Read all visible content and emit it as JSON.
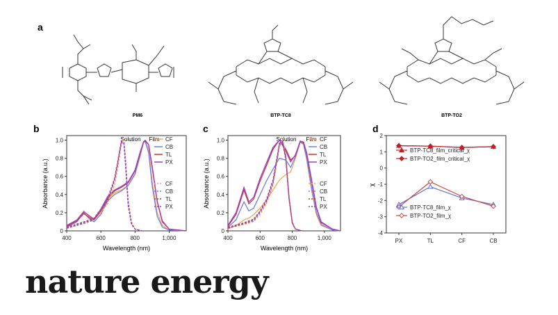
{
  "panel_labels": {
    "a": "a",
    "b": "b",
    "c": "c",
    "d": "d"
  },
  "molecules": [
    {
      "name": "PM6"
    },
    {
      "name": "BTP-TC8"
    },
    {
      "name": "BTP-TO2"
    }
  ],
  "journal_logo": "nature energy",
  "colors": {
    "CF": "#f2a65a",
    "CB": "#6f7fe0",
    "TL": "#c0392b",
    "PX": "#a23bc8",
    "critical": "#c0202a",
    "tc8_film": "#5a6fe0",
    "to2_film": "#d04040"
  },
  "chart_data": [
    {
      "panel": "b",
      "type": "line",
      "xlabel": "Wavelength (nm)",
      "ylabel": "Absorbance (a.u.)",
      "xlim": [
        400,
        1100
      ],
      "ylim": [
        0,
        1.05
      ],
      "xticks": [
        "400",
        "600",
        "800",
        "1,000"
      ],
      "yticks": [
        "0",
        "0.2",
        "0.4",
        "0.6",
        "0.8",
        "1.0"
      ],
      "annotations": [
        "Solution",
        "Film"
      ],
      "legend": {
        "solid": [
          "CF",
          "CB",
          "TL",
          "PX"
        ],
        "dashed": [
          "CF",
          "CB",
          "TL",
          "PX"
        ]
      },
      "series": [
        {
          "name": "CF",
          "style": "solid",
          "x": [
            400,
            460,
            500,
            530,
            560,
            600,
            640,
            680,
            720,
            760,
            800,
            830,
            850,
            860,
            880,
            900,
            930,
            960,
            1000,
            1100
          ],
          "y": [
            0.05,
            0.12,
            0.22,
            0.16,
            0.12,
            0.2,
            0.35,
            0.42,
            0.45,
            0.5,
            0.62,
            0.82,
            0.97,
            0.99,
            0.9,
            0.55,
            0.2,
            0.06,
            0.01,
            0
          ]
        },
        {
          "name": "CB",
          "style": "solid",
          "x": [
            400,
            460,
            500,
            530,
            560,
            600,
            640,
            680,
            720,
            760,
            800,
            830,
            850,
            860,
            880,
            900,
            930,
            960,
            1000,
            1100
          ],
          "y": [
            0.04,
            0.1,
            0.2,
            0.14,
            0.1,
            0.18,
            0.33,
            0.4,
            0.44,
            0.5,
            0.63,
            0.84,
            0.98,
            0.98,
            0.86,
            0.5,
            0.16,
            0.04,
            0.01,
            0
          ]
        },
        {
          "name": "TL",
          "style": "solid",
          "x": [
            400,
            460,
            500,
            530,
            560,
            600,
            640,
            680,
            720,
            760,
            800,
            830,
            850,
            860,
            880,
            900,
            930,
            960,
            1000,
            1100
          ],
          "y": [
            0.05,
            0.11,
            0.19,
            0.15,
            0.12,
            0.22,
            0.36,
            0.44,
            0.48,
            0.53,
            0.66,
            0.86,
            0.98,
            0.99,
            0.95,
            0.7,
            0.32,
            0.1,
            0.02,
            0
          ]
        },
        {
          "name": "PX",
          "style": "solid",
          "x": [
            400,
            460,
            500,
            530,
            560,
            600,
            640,
            680,
            720,
            760,
            800,
            830,
            850,
            860,
            880,
            900,
            930,
            960,
            1000,
            1100
          ],
          "y": [
            0.06,
            0.12,
            0.21,
            0.17,
            0.13,
            0.24,
            0.38,
            0.45,
            0.49,
            0.54,
            0.67,
            0.87,
            0.98,
            1.0,
            0.95,
            0.72,
            0.33,
            0.11,
            0.02,
            0
          ]
        },
        {
          "name": "CF",
          "style": "dashed",
          "x": [
            400,
            500,
            560,
            600,
            640,
            680,
            700,
            720,
            735,
            745,
            760,
            780,
            800,
            840
          ],
          "y": [
            0.03,
            0.08,
            0.12,
            0.2,
            0.3,
            0.5,
            0.7,
            0.95,
            1.0,
            0.8,
            0.35,
            0.1,
            0.02,
            0
          ]
        },
        {
          "name": "CB",
          "style": "dashed",
          "x": [
            400,
            500,
            560,
            600,
            640,
            680,
            700,
            720,
            735,
            745,
            760,
            780,
            800,
            840
          ],
          "y": [
            0.03,
            0.08,
            0.12,
            0.22,
            0.33,
            0.55,
            0.75,
            0.97,
            0.98,
            0.75,
            0.3,
            0.08,
            0.02,
            0
          ]
        },
        {
          "name": "TL",
          "style": "dashed",
          "x": [
            400,
            500,
            560,
            600,
            640,
            680,
            700,
            720,
            735,
            745,
            760,
            780,
            800,
            840
          ],
          "y": [
            0.03,
            0.09,
            0.13,
            0.22,
            0.34,
            0.56,
            0.76,
            0.98,
            0.97,
            0.72,
            0.28,
            0.07,
            0.02,
            0
          ]
        },
        {
          "name": "PX",
          "style": "dashed",
          "x": [
            400,
            500,
            560,
            600,
            640,
            680,
            700,
            720,
            735,
            745,
            760,
            780,
            800,
            840
          ],
          "y": [
            0.04,
            0.1,
            0.14,
            0.24,
            0.36,
            0.58,
            0.78,
            0.99,
            0.96,
            0.7,
            0.27,
            0.07,
            0.02,
            0
          ]
        }
      ]
    },
    {
      "panel": "c",
      "type": "line",
      "xlabel": "Wavelength (nm)",
      "ylabel": "Absorbance (a.u.)",
      "xlim": [
        400,
        1100
      ],
      "ylim": [
        0,
        1.05
      ],
      "xticks": [
        "400",
        "600",
        "800",
        "1,000"
      ],
      "yticks": [
        "0",
        "0.2",
        "0.4",
        "0.6",
        "0.8",
        "1.0"
      ],
      "annotations": [
        "Solution",
        "Film"
      ],
      "legend": {
        "solid": [
          "CF",
          "CB",
          "TL",
          "PX"
        ],
        "dashed": [
          "CF",
          "CB",
          "TL",
          "PX"
        ]
      },
      "series": [
        {
          "name": "CF",
          "style": "solid",
          "x": [
            400,
            450,
            500,
            530,
            560,
            600,
            640,
            680,
            720,
            760,
            790,
            820,
            850,
            870,
            890,
            920,
            950,
            980,
            1050,
            1100
          ],
          "y": [
            0.02,
            0.06,
            0.12,
            0.14,
            0.18,
            0.25,
            0.34,
            0.45,
            0.56,
            0.62,
            0.65,
            0.8,
            0.98,
            0.95,
            0.78,
            0.45,
            0.18,
            0.06,
            0.01,
            0
          ]
        },
        {
          "name": "CB",
          "style": "solid",
          "x": [
            400,
            450,
            500,
            530,
            560,
            600,
            640,
            680,
            720,
            760,
            790,
            820,
            850,
            870,
            890,
            920,
            950,
            980,
            1050,
            1100
          ],
          "y": [
            0.04,
            0.12,
            0.32,
            0.22,
            0.25,
            0.4,
            0.55,
            0.68,
            0.8,
            0.78,
            0.7,
            0.82,
            0.98,
            0.96,
            0.8,
            0.48,
            0.2,
            0.07,
            0.01,
            0
          ]
        },
        {
          "name": "TL",
          "style": "solid",
          "x": [
            400,
            450,
            500,
            530,
            560,
            600,
            640,
            680,
            720,
            760,
            790,
            820,
            850,
            870,
            890,
            920,
            950,
            980,
            1050,
            1100
          ],
          "y": [
            0.05,
            0.18,
            0.45,
            0.3,
            0.35,
            0.55,
            0.72,
            0.9,
            1.0,
            0.9,
            0.78,
            0.83,
            0.99,
            0.97,
            0.85,
            0.55,
            0.25,
            0.09,
            0.02,
            0
          ]
        },
        {
          "name": "PX",
          "style": "solid",
          "x": [
            400,
            450,
            500,
            530,
            560,
            600,
            640,
            680,
            720,
            760,
            790,
            820,
            850,
            870,
            890,
            920,
            950,
            980,
            1050,
            1100
          ],
          "y": [
            0.06,
            0.2,
            0.48,
            0.32,
            0.37,
            0.58,
            0.75,
            0.92,
            1.0,
            0.88,
            0.76,
            0.84,
            0.99,
            0.98,
            0.86,
            0.57,
            0.26,
            0.1,
            0.02,
            0
          ]
        },
        {
          "name": "CF",
          "style": "dashed",
          "x": [
            400,
            500,
            560,
            600,
            640,
            680,
            700,
            720,
            740,
            760,
            780,
            800,
            820,
            860
          ],
          "y": [
            0.03,
            0.07,
            0.1,
            0.18,
            0.3,
            0.5,
            0.7,
            0.92,
            1.0,
            0.85,
            0.4,
            0.1,
            0.02,
            0
          ]
        },
        {
          "name": "CB",
          "style": "dashed",
          "x": [
            400,
            500,
            560,
            600,
            640,
            680,
            700,
            720,
            740,
            760,
            780,
            800,
            820,
            860
          ],
          "y": [
            0.03,
            0.08,
            0.11,
            0.2,
            0.32,
            0.52,
            0.72,
            0.94,
            0.99,
            0.82,
            0.38,
            0.09,
            0.02,
            0
          ]
        },
        {
          "name": "TL",
          "style": "dashed",
          "x": [
            400,
            500,
            560,
            600,
            640,
            680,
            700,
            720,
            740,
            760,
            780,
            800,
            820,
            860
          ],
          "y": [
            0.03,
            0.08,
            0.12,
            0.21,
            0.33,
            0.54,
            0.74,
            0.96,
            0.98,
            0.8,
            0.36,
            0.09,
            0.02,
            0
          ]
        },
        {
          "name": "PX",
          "style": "dashed",
          "x": [
            400,
            500,
            560,
            600,
            640,
            680,
            700,
            720,
            740,
            760,
            780,
            800,
            820,
            860
          ],
          "y": [
            0.04,
            0.09,
            0.13,
            0.22,
            0.35,
            0.56,
            0.76,
            0.97,
            0.97,
            0.78,
            0.35,
            0.08,
            0.02,
            0
          ]
        }
      ]
    },
    {
      "panel": "d",
      "type": "line",
      "xlabel": "",
      "ylabel": "χ",
      "categories": [
        "PX",
        "TL",
        "CF",
        "CB"
      ],
      "ylim": [
        -4,
        2
      ],
      "yticks": [
        "-4",
        "-3",
        "-2",
        "-1",
        "0",
        "1",
        "2"
      ],
      "series": [
        {
          "name": "BTP-TC8_film_critical_χ",
          "marker": "triangle",
          "values": [
            1.38,
            1.35,
            1.27,
            1.32
          ]
        },
        {
          "name": "BTP-TO2_film_critical_χ",
          "marker": "diamond",
          "values": [
            1.38,
            1.35,
            1.27,
            1.32
          ]
        },
        {
          "name": "BTP-TC8_film_χ",
          "marker": "triangle-open",
          "values": [
            -2.25,
            -1.15,
            -1.85,
            -2.25
          ]
        },
        {
          "name": "BTP-TO2_film_χ",
          "marker": "diamond-open",
          "values": [
            -2.4,
            -0.85,
            -1.75,
            -2.35
          ]
        }
      ]
    }
  ]
}
